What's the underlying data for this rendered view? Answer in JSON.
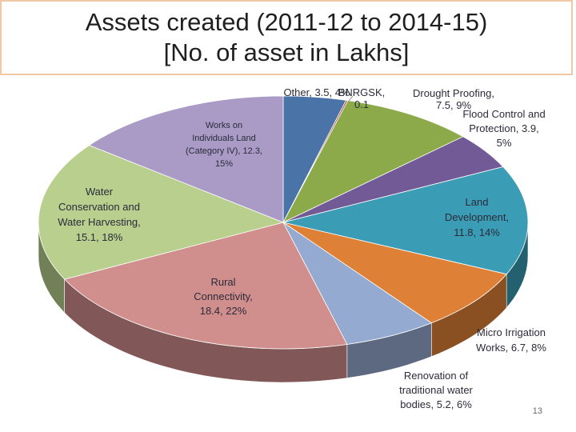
{
  "title_lines": [
    "Assets created (2011-12 to 2014-15)",
    "[No. of asset in Lakhs]"
  ],
  "slide_number": "13",
  "chart_data": {
    "type": "pie",
    "three_d": true,
    "title": "Assets created (2011-12 to 2014-15) [No. of asset in Lakhs]",
    "legend": "none",
    "slices": [
      {
        "name": "Other",
        "value": 3.5,
        "percent": "4%",
        "color": "#4a73a8",
        "label_lines": [
          "Other, 3.5, 4%"
        ]
      },
      {
        "name": "BNRGSK",
        "value": 0.1,
        "percent": "",
        "color": "#b8473e",
        "label_lines": [
          "BNRGSK,",
          "0.1"
        ]
      },
      {
        "name": "Drought Proofing",
        "value": 7.5,
        "percent": "9%",
        "color": "#8caa4a",
        "label_lines": [
          "Drought Proofing,",
          "7.5, 9%"
        ]
      },
      {
        "name": "Flood Control and Protection",
        "value": 3.9,
        "percent": "5%",
        "color": "#725a96",
        "label_lines": [
          "Flood Control and",
          "Protection, 3.9,",
          "5%"
        ]
      },
      {
        "name": "Land Development",
        "value": 11.8,
        "percent": "14%",
        "color": "#3a9cb5",
        "label_lines": [
          "Land",
          "Development,",
          "11.8, 14%"
        ]
      },
      {
        "name": "Micro Irrigation Works",
        "value": 6.7,
        "percent": "8%",
        "color": "#de8136",
        "label_lines": [
          "Micro Irrigation",
          "Works, 6.7, 8%"
        ]
      },
      {
        "name": "Renovation of traditional water bodies",
        "value": 5.2,
        "percent": "6%",
        "color": "#94aad0",
        "label_lines": [
          "Renovation of",
          "traditional water",
          "bodies, 5.2, 6%"
        ]
      },
      {
        "name": "Rural Connectivity",
        "value": 18.4,
        "percent": "22%",
        "color": "#d08e8c",
        "label_lines": [
          "Rural",
          "Connectivity,",
          "18.4, 22%"
        ]
      },
      {
        "name": "Water Conservation and Water Harvesting",
        "value": 15.1,
        "percent": "18%",
        "color": "#b8cf8e",
        "label_lines": [
          "Water",
          "Conservation and",
          "Water Harvesting,",
          "15.1, 18%"
        ]
      },
      {
        "name": "Works on Individuals Land (Category IV)",
        "value": 12.3,
        "percent": "15%",
        "color": "#a99bc5",
        "label_lines": [
          "Works on",
          "Individuals Land",
          "(Category IV), 12.3,",
          "15%"
        ]
      }
    ]
  }
}
